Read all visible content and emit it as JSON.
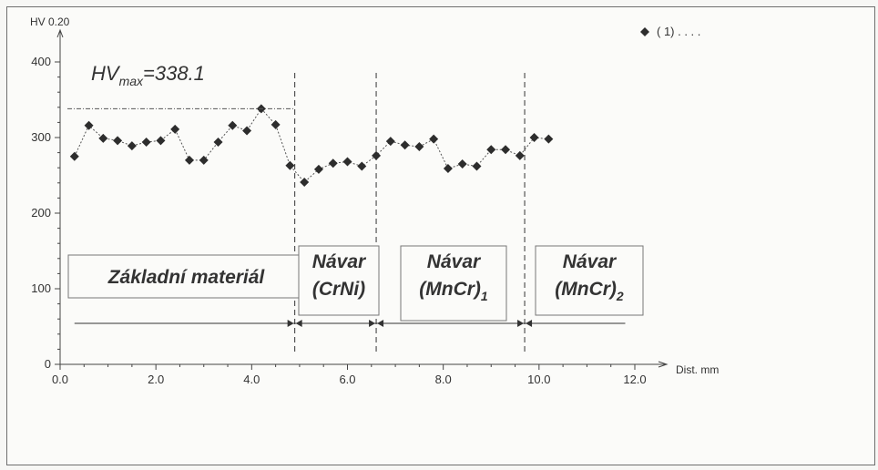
{
  "chart_data": {
    "type": "scatter",
    "ylabel": "HV 0.20",
    "xlabel": "Dist. mm",
    "xlim": [
      0,
      12.0
    ],
    "ylim": [
      0,
      400
    ],
    "xticks": [
      "0.0",
      "2.0",
      "4.0",
      "6.0",
      "8.0",
      "10.0",
      "12.0"
    ],
    "yticks": [
      "0",
      "100",
      "200",
      "300",
      "400"
    ],
    "grid": false,
    "legend": {
      "position": "top-right",
      "label": "( 1) . . . ."
    },
    "series": [
      {
        "name": "( 1) . . . .",
        "x": [
          0.3,
          0.6,
          0.9,
          1.2,
          1.5,
          1.8,
          2.1,
          2.4,
          2.7,
          3.0,
          3.3,
          3.6,
          3.9,
          4.2,
          4.5,
          4.8,
          5.1,
          5.4,
          5.7,
          6.0,
          6.3,
          6.6,
          6.9,
          7.2,
          7.5,
          7.8,
          8.1,
          8.4,
          8.7,
          9.0,
          9.3,
          9.6,
          9.9,
          10.2
        ],
        "y": [
          275,
          316,
          299,
          296,
          289,
          294,
          296,
          311,
          270,
          270,
          294,
          316,
          309,
          338.1,
          317,
          263,
          241,
          258,
          266,
          268,
          262,
          276,
          295,
          290,
          288,
          298,
          259,
          265,
          262,
          284,
          284,
          276,
          300,
          298
        ]
      }
    ],
    "annotations": {
      "hvmax_base": "HV",
      "hvmax_sub": "max",
      "hvmax_rest": "=338.1",
      "hvmax_value": 338.1,
      "zone_boundaries": [
        4.9,
        6.6,
        9.7
      ],
      "zones": [
        {
          "lines": [
            "Základní materiál"
          ],
          "x_start": 0.3,
          "x_end": 4.9
        },
        {
          "lines": [
            "Návar",
            "(CrNi)"
          ],
          "x_start": 4.9,
          "x_end": 6.6
        },
        {
          "lines": [
            "Návar",
            "(MnCr)"
          ],
          "subscript": "1",
          "x_start": 6.6,
          "x_end": 9.7
        },
        {
          "lines": [
            "Návar",
            "(MnCr)"
          ],
          "subscript": "2",
          "x_start": 9.7,
          "x_end": 11.8
        }
      ]
    }
  }
}
